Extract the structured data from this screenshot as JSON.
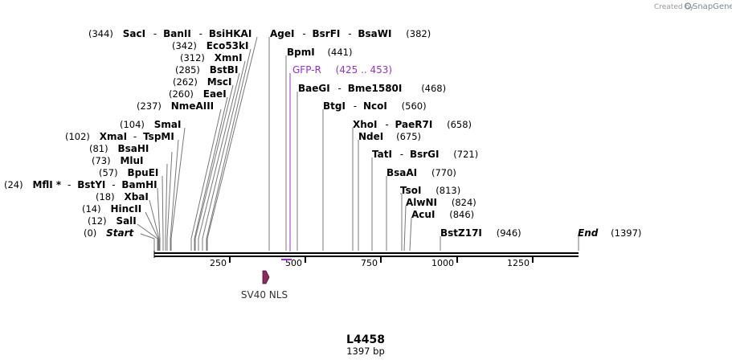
{
  "credit": {
    "text": "Created by",
    "brand": "SnapGene"
  },
  "plasmid": {
    "name": "L4458",
    "length_label": "1397 bp",
    "length": 1397
  },
  "axis": {
    "ticks": [
      "250",
      "500",
      "750",
      "1000",
      "1250"
    ]
  },
  "sites_left": [
    {
      "pos": "(0)",
      "names": [
        "Start"
      ],
      "italic": true
    },
    {
      "pos": "(12)",
      "names": [
        "SalI"
      ]
    },
    {
      "pos": "(14)",
      "names": [
        "HincII"
      ]
    },
    {
      "pos": "(18)",
      "names": [
        "XbaI"
      ]
    },
    {
      "pos": "(24)",
      "names": [
        "MflI *",
        "BstYI",
        "BamHI"
      ]
    },
    {
      "pos": "(57)",
      "names": [
        "BpuEI"
      ]
    },
    {
      "pos": "(73)",
      "names": [
        "MluI"
      ]
    },
    {
      "pos": "(81)",
      "names": [
        "BsaHI"
      ]
    },
    {
      "pos": "(102)",
      "names": [
        "XmaI",
        "TspMI"
      ]
    },
    {
      "pos": "(104)",
      "names": [
        "SmaI"
      ]
    },
    {
      "pos": "(237)",
      "names": [
        "NmeAIII"
      ]
    },
    {
      "pos": "(260)",
      "names": [
        "EaeI"
      ]
    },
    {
      "pos": "(262)",
      "names": [
        "MscI"
      ]
    },
    {
      "pos": "(285)",
      "names": [
        "BstBI"
      ]
    },
    {
      "pos": "(312)",
      "names": [
        "XmnI"
      ]
    },
    {
      "pos": "(342)",
      "names": [
        "Eco53kI"
      ]
    },
    {
      "pos": "(344)",
      "names": [
        "SacI",
        "BanII",
        "BsiHKAI"
      ]
    }
  ],
  "sites_right": [
    {
      "names": [
        "AgeI",
        "BsrFI",
        "BsaWI"
      ],
      "pos": "(382)"
    },
    {
      "names": [
        "BpmI"
      ],
      "pos": "(441)"
    },
    {
      "names": [
        "BaeGI",
        "Bme1580I"
      ],
      "pos": "(468)"
    },
    {
      "names": [
        "BtgI",
        "NcoI"
      ],
      "pos": "(560)"
    },
    {
      "names": [
        "XhoI",
        "PaeR7I"
      ],
      "pos": "(658)"
    },
    {
      "names": [
        "NdeI"
      ],
      "pos": "(675)"
    },
    {
      "names": [
        "TatI",
        "BsrGI"
      ],
      "pos": "(721)"
    },
    {
      "names": [
        "BsaAI"
      ],
      "pos": "(770)"
    },
    {
      "names": [
        "TsoI"
      ],
      "pos": "(813)"
    },
    {
      "names": [
        "AlwNI"
      ],
      "pos": "(824)"
    },
    {
      "names": [
        "AcuI"
      ],
      "pos": "(846)"
    },
    {
      "names": [
        "BstZ17I"
      ],
      "pos": "(946)"
    },
    {
      "names": [
        "End"
      ],
      "pos": "(1397)",
      "italic": true
    }
  ],
  "primer": {
    "name": "GFP-R",
    "range": "(425 .. 453)",
    "color": "#9a30d8"
  },
  "feature": {
    "name": "SV40 NLS",
    "color": "#8b2a5a"
  }
}
